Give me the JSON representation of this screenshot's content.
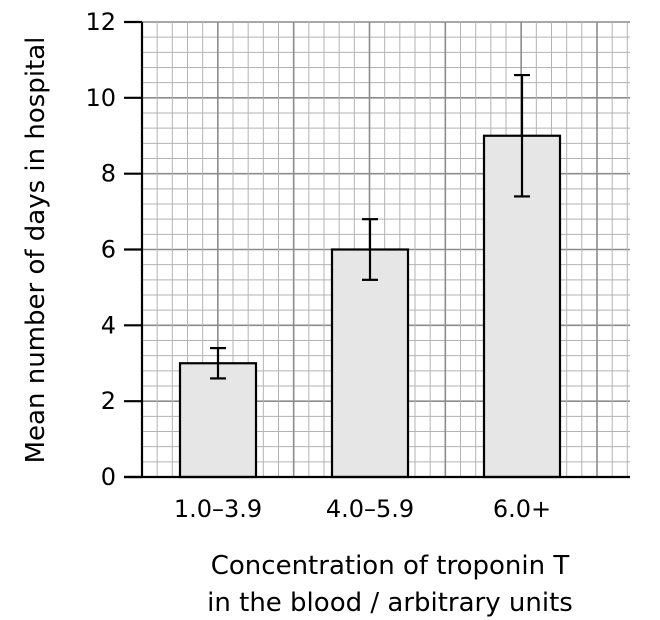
{
  "chart_data": {
    "type": "bar",
    "categories": [
      "1.0–3.9",
      "4.0–5.9",
      "6.0+"
    ],
    "values": [
      3,
      6,
      9
    ],
    "error_low": [
      2.6,
      5.2,
      7.4
    ],
    "error_high": [
      3.4,
      6.8,
      10.6
    ],
    "ylim": [
      0,
      12
    ],
    "yticks": [
      0,
      2,
      4,
      6,
      8,
      10,
      12
    ],
    "ylabel": "Mean number of days in hospital",
    "xlabel_lines": [
      "Concentration of troponin T",
      "in the blood / arbitrary units"
    ],
    "grid": true,
    "bar_color": "#e6e6e6",
    "grid_minor_color": "#b3b3b3",
    "grid_major_color": "#8c8c8c"
  }
}
